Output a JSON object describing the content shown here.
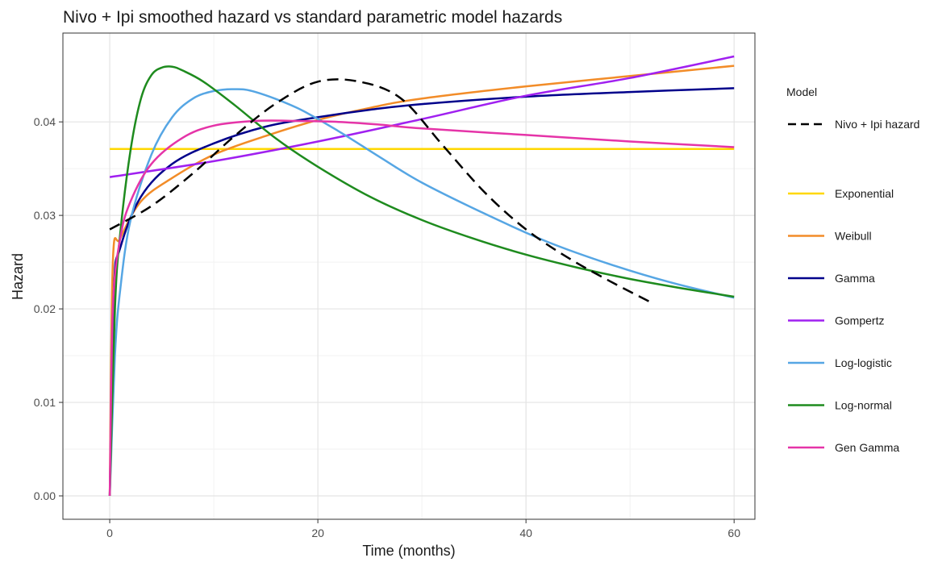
{
  "chart_data": {
    "type": "line",
    "title": "Nivo + Ipi smoothed hazard vs standard parametric model hazards",
    "xlabel": "Time (months)",
    "ylabel": "Hazard",
    "xlim": [
      -4.5,
      62
    ],
    "ylim": [
      -0.0025,
      0.0495
    ],
    "x_ticks": [
      0,
      20,
      40,
      60
    ],
    "x_tick_labels": [
      "0",
      "20",
      "40",
      "60"
    ],
    "y_ticks": [
      0,
      0.01,
      0.02,
      0.03,
      0.04
    ],
    "y_tick_labels": [
      "0.00",
      "0.01",
      "0.02",
      "0.03",
      "0.04"
    ],
    "grid": true,
    "legend": {
      "title": "Model",
      "placement": "right",
      "reference_entry": "Nivo + Ipi hazard",
      "entries": [
        "Exponential",
        "Weibull",
        "Gamma",
        "Gompertz",
        "Log-logistic",
        "Log-normal",
        "Gen Gamma"
      ]
    },
    "reference_series": {
      "name": "Nivo + Ipi hazard",
      "color": "#000000",
      "dashed": true,
      "points": [
        [
          0,
          0.0285
        ],
        [
          4,
          0.031
        ],
        [
          8,
          0.0345
        ],
        [
          12,
          0.0385
        ],
        [
          16,
          0.042
        ],
        [
          20,
          0.0443
        ],
        [
          24,
          0.0443
        ],
        [
          28,
          0.0425
        ],
        [
          32,
          0.0375
        ],
        [
          36,
          0.0325
        ],
        [
          40,
          0.0285
        ],
        [
          44,
          0.0255
        ],
        [
          48,
          0.023
        ],
        [
          52,
          0.0207
        ]
      ]
    },
    "series": [
      {
        "name": "Exponential",
        "color": "#FFD700",
        "points": [
          [
            0,
            0.0371
          ],
          [
            60,
            0.0371
          ]
        ]
      },
      {
        "name": "Weibull",
        "color": "#F28C28",
        "points": [
          [
            0,
            0.0
          ],
          [
            0.3,
            0.025
          ],
          [
            1,
            0.0275
          ],
          [
            3,
            0.0315
          ],
          [
            6,
            0.034
          ],
          [
            10,
            0.0365
          ],
          [
            15,
            0.0385
          ],
          [
            20,
            0.0402
          ],
          [
            25,
            0.0415
          ],
          [
            30,
            0.0425
          ],
          [
            40,
            0.0438
          ],
          [
            50,
            0.0449
          ],
          [
            60,
            0.046
          ]
        ]
      },
      {
        "name": "Gamma",
        "color": "#00008B",
        "points": [
          [
            0,
            0.0
          ],
          [
            0.4,
            0.022
          ],
          [
            1,
            0.0265
          ],
          [
            3,
            0.032
          ],
          [
            6,
            0.0355
          ],
          [
            10,
            0.0377
          ],
          [
            15,
            0.0395
          ],
          [
            20,
            0.0405
          ],
          [
            25,
            0.0413
          ],
          [
            30,
            0.0419
          ],
          [
            40,
            0.0427
          ],
          [
            50,
            0.0432
          ],
          [
            60,
            0.0436
          ]
        ]
      },
      {
        "name": "Gompertz",
        "color": "#A020F0",
        "points": [
          [
            0,
            0.0341
          ],
          [
            10,
            0.0358
          ],
          [
            20,
            0.0379
          ],
          [
            30,
            0.0403
          ],
          [
            40,
            0.0428
          ],
          [
            50,
            0.0447
          ],
          [
            60,
            0.047
          ]
        ]
      },
      {
        "name": "Log-logistic",
        "color": "#56A6E4",
        "points": [
          [
            0,
            0.0
          ],
          [
            0.5,
            0.015
          ],
          [
            1,
            0.022
          ],
          [
            2,
            0.0295
          ],
          [
            4,
            0.0365
          ],
          [
            6,
            0.0405
          ],
          [
            8,
            0.0425
          ],
          [
            10,
            0.0433
          ],
          [
            12,
            0.0435
          ],
          [
            14,
            0.0432
          ],
          [
            18,
            0.0415
          ],
          [
            22,
            0.039
          ],
          [
            26,
            0.0362
          ],
          [
            30,
            0.0335
          ],
          [
            36,
            0.0302
          ],
          [
            42,
            0.0272
          ],
          [
            48,
            0.0248
          ],
          [
            54,
            0.0228
          ],
          [
            60,
            0.0212
          ]
        ]
      },
      {
        "name": "Log-normal",
        "color": "#1E8B1E",
        "points": [
          [
            0,
            0.0
          ],
          [
            0.5,
            0.02
          ],
          [
            1,
            0.028
          ],
          [
            2,
            0.037
          ],
          [
            3,
            0.0425
          ],
          [
            4,
            0.045
          ],
          [
            5,
            0.0458
          ],
          [
            6,
            0.0459
          ],
          [
            7,
            0.0455
          ],
          [
            9,
            0.0443
          ],
          [
            12,
            0.0418
          ],
          [
            16,
            0.0382
          ],
          [
            20,
            0.0352
          ],
          [
            25,
            0.032
          ],
          [
            30,
            0.0295
          ],
          [
            35,
            0.0275
          ],
          [
            40,
            0.0258
          ],
          [
            45,
            0.0244
          ],
          [
            50,
            0.0232
          ],
          [
            55,
            0.0222
          ],
          [
            60,
            0.0213
          ]
        ]
      },
      {
        "name": "Gen Gamma",
        "color": "#E534A8",
        "points": [
          [
            0,
            0.0
          ],
          [
            0.3,
            0.02
          ],
          [
            1,
            0.0275
          ],
          [
            2,
            0.0315
          ],
          [
            4,
            0.0355
          ],
          [
            7,
            0.0383
          ],
          [
            10,
            0.0396
          ],
          [
            14,
            0.0401
          ],
          [
            18,
            0.0401
          ],
          [
            22,
            0.04
          ],
          [
            26,
            0.0397
          ],
          [
            30,
            0.0393
          ],
          [
            40,
            0.0386
          ],
          [
            50,
            0.0379
          ],
          [
            60,
            0.0373
          ]
        ]
      }
    ]
  }
}
